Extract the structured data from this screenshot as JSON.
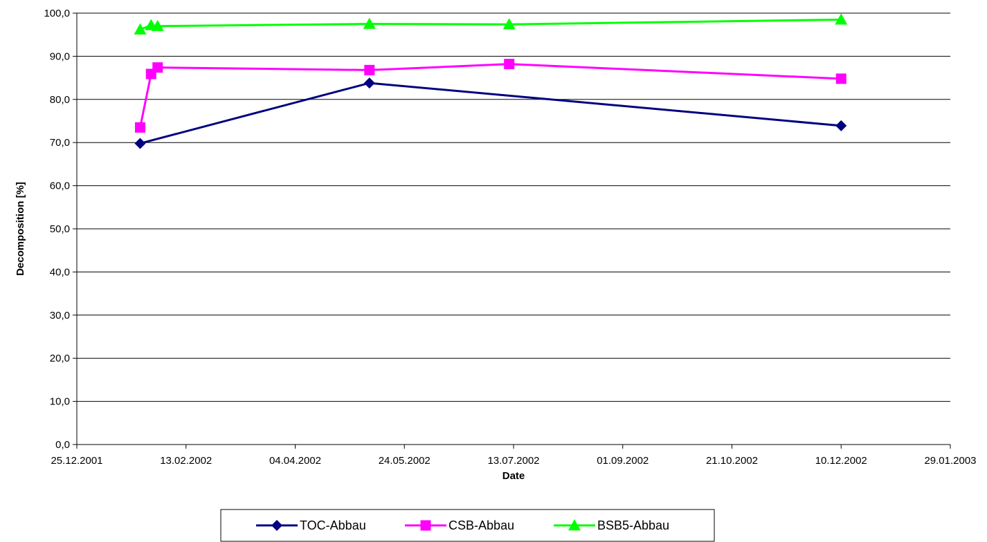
{
  "chart_data": {
    "type": "line",
    "title": "",
    "xlabel": "Date",
    "ylabel": "Decomposition [%]",
    "x_axis": {
      "type": "date",
      "range": [
        "2001-12-25",
        "2003-01-29"
      ],
      "tick_values": [
        "2001-12-25",
        "2002-02-13",
        "2002-04-04",
        "2002-05-24",
        "2002-07-13",
        "2002-09-01",
        "2002-10-21",
        "2002-12-10",
        "2003-01-29"
      ],
      "tick_labels": [
        "25.12.2001",
        "13.02.2002",
        "04.04.2002",
        "24.05.2002",
        "13.07.2002",
        "01.09.2002",
        "21.10.2002",
        "10.12.2002",
        "29.01.2003"
      ]
    },
    "y_axis": {
      "range": [
        0,
        100
      ],
      "tick_values": [
        0,
        10,
        20,
        30,
        40,
        50,
        60,
        70,
        80,
        90,
        100
      ],
      "tick_labels": [
        "0,0",
        "10,0",
        "20,0",
        "30,0",
        "40,0",
        "50,0",
        "60,0",
        "70,0",
        "80,0",
        "90,0",
        "100,0"
      ]
    },
    "grid": {
      "horizontal": true,
      "vertical": false
    },
    "legend_position": "bottom",
    "series": [
      {
        "name": "TOC-Abbau",
        "color": "#000080",
        "marker": "diamond",
        "points": [
          {
            "x": "2002-01-23",
            "y": 69.8
          },
          {
            "x": "2002-05-08",
            "y": 83.8
          },
          {
            "x": "2002-12-10",
            "y": 73.9
          }
        ]
      },
      {
        "name": "CSB-Abbau",
        "color": "#ff00ff",
        "marker": "square",
        "points": [
          {
            "x": "2002-01-23",
            "y": 73.5
          },
          {
            "x": "2002-01-28",
            "y": 85.9
          },
          {
            "x": "2002-01-31",
            "y": 87.4
          },
          {
            "x": "2002-05-08",
            "y": 86.8
          },
          {
            "x": "2002-07-11",
            "y": 88.2
          },
          {
            "x": "2002-12-10",
            "y": 84.8
          }
        ]
      },
      {
        "name": "BSB5-Abbau",
        "color": "#00ff00",
        "marker": "triangle",
        "points": [
          {
            "x": "2002-01-23",
            "y": 96.2
          },
          {
            "x": "2002-01-28",
            "y": 97.2
          },
          {
            "x": "2002-01-31",
            "y": 97.0
          },
          {
            "x": "2002-05-08",
            "y": 97.5
          },
          {
            "x": "2002-07-11",
            "y": 97.4
          },
          {
            "x": "2002-12-10",
            "y": 98.5
          }
        ]
      }
    ]
  }
}
